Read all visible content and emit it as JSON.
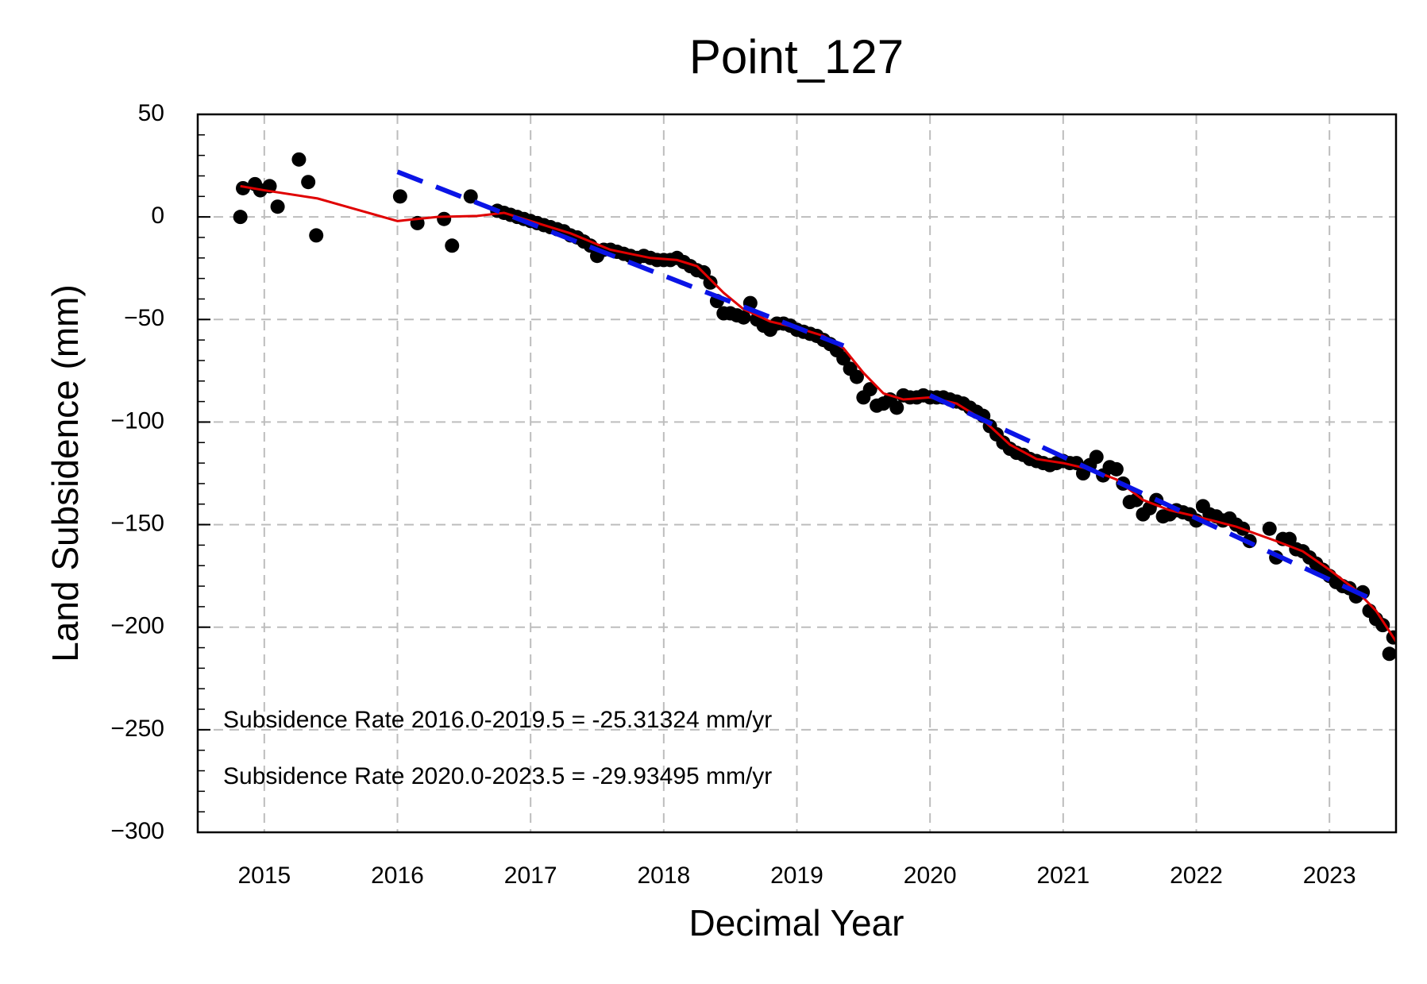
{
  "chart_data": {
    "type": "scatter",
    "title": "Point_127",
    "x_label": "Decimal Year",
    "y_label": "Land Subsidence (mm)",
    "annotations": [
      "Subsidence Rate 2016.0-2019.5 = -25.31324 mm/yr",
      "Subsidence Rate 2020.0-2023.5 = -29.93495 mm/yr"
    ],
    "xlim": [
      2014.5,
      2023.5
    ],
    "ylim": [
      -300,
      50
    ],
    "xticks": [
      2015,
      2016,
      2017,
      2018,
      2019,
      2020,
      2021,
      2022,
      2023
    ],
    "yticks": [
      {
        "value": -300,
        "label": "−300"
      },
      {
        "value": -250,
        "label": "−250"
      },
      {
        "value": -200,
        "label": "−200"
      },
      {
        "value": -150,
        "label": "−150"
      },
      {
        "value": -100,
        "label": "−100"
      },
      {
        "value": -50,
        "label": "−50"
      },
      0,
      50
    ],
    "yminorticks": [
      -300,
      -290,
      -280,
      -270,
      -260,
      -250,
      -240,
      -230,
      -220,
      -210,
      -200,
      -190,
      -180,
      -170,
      -160,
      -150,
      -140,
      -130,
      -120,
      -110,
      -100,
      -90,
      -80,
      -70,
      -60,
      -50,
      -40,
      -30,
      -20,
      -10,
      0,
      10,
      20,
      30,
      40,
      50
    ],
    "grid": true,
    "series": [
      {
        "mode": "markers",
        "color": "#000000",
        "x": [
          2014.82,
          2014.84,
          2014.93,
          2014.97,
          2015.04,
          2015.1,
          2015.26,
          2015.33,
          2015.39,
          2016.02,
          2016.15,
          2016.35,
          2016.41,
          2016.55,
          2016.75,
          2016.8,
          2016.85,
          2016.9,
          2016.95,
          2017.0,
          2017.05,
          2017.1,
          2017.15,
          2017.2,
          2017.25,
          2017.3,
          2017.35,
          2017.4,
          2017.45,
          2017.5,
          2017.55,
          2017.6,
          2017.65,
          2017.7,
          2017.75,
          2017.8,
          2017.85,
          2017.9,
          2017.95,
          2018.0,
          2018.05,
          2018.1,
          2018.15,
          2018.2,
          2018.25,
          2018.3,
          2018.35,
          2018.4,
          2018.45,
          2018.5,
          2018.55,
          2018.6,
          2018.65,
          2018.7,
          2018.75,
          2018.8,
          2018.85,
          2018.9,
          2018.95,
          2019.0,
          2019.05,
          2019.1,
          2019.15,
          2019.2,
          2019.25,
          2019.3,
          2019.35,
          2019.4,
          2019.45,
          2019.5,
          2019.55,
          2019.6,
          2019.65,
          2019.7,
          2019.75,
          2019.8,
          2019.85,
          2019.9,
          2019.95,
          2020.0,
          2020.05,
          2020.1,
          2020.15,
          2020.2,
          2020.25,
          2020.3,
          2020.35,
          2020.4,
          2020.45,
          2020.5,
          2020.55,
          2020.6,
          2020.65,
          2020.7,
          2020.75,
          2020.8,
          2020.85,
          2020.9,
          2020.95,
          2021.0,
          2021.05,
          2021.1,
          2021.15,
          2021.2,
          2021.25,
          2021.3,
          2021.35,
          2021.4,
          2021.45,
          2021.5,
          2021.55,
          2021.6,
          2021.65,
          2021.7,
          2021.75,
          2021.8,
          2021.85,
          2021.9,
          2021.95,
          2022.0,
          2022.05,
          2022.1,
          2022.15,
          2022.2,
          2022.25,
          2022.3,
          2022.35,
          2022.4,
          2022.55,
          2022.6,
          2022.65,
          2022.7,
          2022.75,
          2022.8,
          2022.85,
          2022.9,
          2022.95,
          2023.0,
          2023.05,
          2023.1,
          2023.15,
          2023.2,
          2023.25,
          2023.3,
          2023.35,
          2023.4,
          2023.45,
          2023.48
        ],
        "values": [
          0,
          14,
          16,
          13,
          15,
          5,
          28,
          17,
          -9,
          10,
          -3,
          -1,
          -14,
          10,
          3,
          2,
          1,
          0,
          -1,
          -2,
          -3,
          -4,
          -5,
          -6,
          -7,
          -9,
          -10,
          -12,
          -14,
          -19,
          -16,
          -16,
          -17,
          -18,
          -19,
          -20,
          -19,
          -20,
          -21,
          -21,
          -21,
          -20,
          -22,
          -24,
          -26,
          -27,
          -32,
          -41,
          -47,
          -47,
          -48,
          -49,
          -42,
          -50,
          -53,
          -55,
          -52,
          -52,
          -53,
          -55,
          -56,
          -57,
          -58,
          -60,
          -62,
          -65,
          -69,
          -74,
          -78,
          -88,
          -84,
          -92,
          -91,
          -89,
          -93,
          -87,
          -88,
          -88,
          -87,
          -88,
          -88,
          -88,
          -89,
          -90,
          -91,
          -93,
          -95,
          -97,
          -102,
          -106,
          -110,
          -113,
          -115,
          -116,
          -118,
          -119,
          -120,
          -121,
          -120,
          -119,
          -120,
          -120,
          -125,
          -121,
          -117,
          -126,
          -122,
          -123,
          -130,
          -139,
          -138,
          -145,
          -142,
          -138,
          -146,
          -145,
          -143,
          -144,
          -145,
          -148,
          -141,
          -145,
          -146,
          -148,
          -147,
          -150,
          -152,
          -158,
          -152,
          -166,
          -157,
          -157,
          -162,
          -163,
          -166,
          -169,
          -172,
          -175,
          -178,
          -180,
          -181,
          -185,
          -183,
          -192,
          -196,
          -199,
          -213,
          -205
        ]
      },
      {
        "mode": "line",
        "color": "#e00000",
        "x": [
          2014.82,
          2015.0,
          2015.4,
          2016.0,
          2016.3,
          2016.6,
          2016.8,
          2017.0,
          2017.3,
          2017.6,
          2017.9,
          2018.1,
          2018.25,
          2018.45,
          2018.6,
          2018.8,
          2019.0,
          2019.2,
          2019.35,
          2019.5,
          2019.65,
          2019.8,
          2020.0,
          2020.2,
          2020.4,
          2020.6,
          2020.8,
          2021.0,
          2021.2,
          2021.4,
          2021.6,
          2021.8,
          2022.0,
          2022.3,
          2022.6,
          2022.8,
          2023.0,
          2023.2,
          2023.35,
          2023.5
        ],
        "values": [
          15,
          13,
          9,
          -2,
          0,
          0.5,
          2,
          -2,
          -8,
          -16,
          -20,
          -21,
          -24,
          -37,
          -45,
          -51,
          -54,
          -58,
          -64,
          -76,
          -86,
          -89,
          -88,
          -91,
          -99,
          -111,
          -118,
          -120,
          -123,
          -128,
          -138,
          -143,
          -146,
          -151,
          -158,
          -163,
          -172,
          -182,
          -192,
          -207
        ]
      },
      {
        "mode": "dashed",
        "color": "#0a14e6",
        "x": [
          2016.0,
          2019.35
        ],
        "values": [
          22,
          -62.8
        ]
      },
      {
        "mode": "dashed",
        "color": "#0a14e6",
        "x": [
          2020.0,
          2023.3
        ],
        "values": [
          -87,
          -185.8
        ]
      }
    ]
  }
}
